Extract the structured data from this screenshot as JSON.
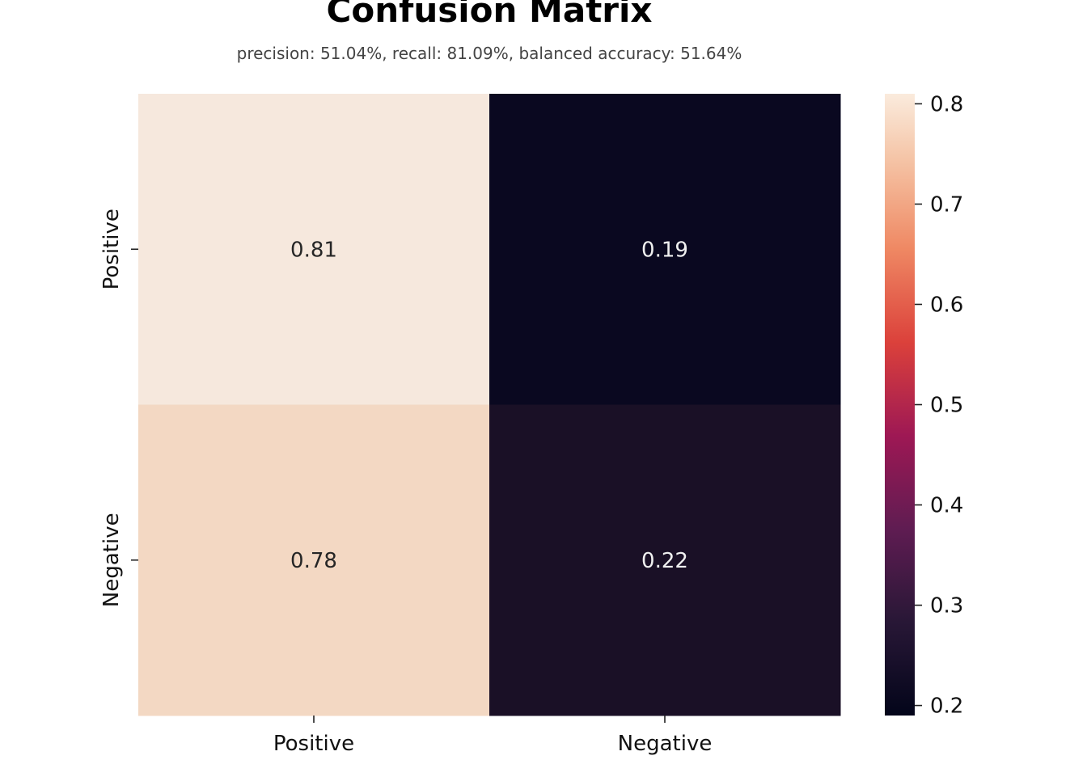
{
  "title": "Confusion Matrix",
  "subtitle": "precision: 51.04%, recall: 81.09%, balanced accuracy: 51.64%",
  "chart_data": {
    "type": "heatmap",
    "title": "Confusion Matrix",
    "subtitle": "precision: 51.04%, recall: 81.09%, balanced accuracy: 51.64%",
    "xlabel": "",
    "ylabel": "",
    "x_categories": [
      "Positive",
      "Negative"
    ],
    "y_categories": [
      "Positive",
      "Negative"
    ],
    "values": [
      [
        0.81,
        0.19
      ],
      [
        0.78,
        0.22
      ]
    ],
    "cell_labels": [
      [
        "0.81",
        "0.19"
      ],
      [
        "0.78",
        "0.22"
      ]
    ],
    "colorbar": {
      "range": [
        0.19,
        0.81
      ],
      "ticks": [
        0.2,
        0.3,
        0.4,
        0.5,
        0.6,
        0.7,
        0.8
      ],
      "tick_labels": [
        "0.2",
        "0.3",
        "0.4",
        "0.5",
        "0.6",
        "0.7",
        "0.8"
      ],
      "colormap": "rocket"
    },
    "colors": {
      "cell_0_0": "#f6e8dd",
      "cell_0_1": "#0a0820",
      "cell_1_0": "#f3d8c3",
      "cell_1_1": "#1a1026"
    },
    "grid": false
  }
}
